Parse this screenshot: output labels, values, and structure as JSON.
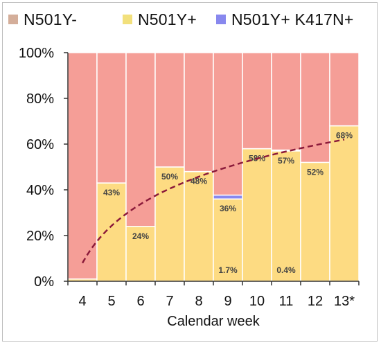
{
  "chart_data": {
    "type": "bar",
    "stacked": true,
    "title": "",
    "xlabel": "Calendar week",
    "ylabel": "",
    "ylim": [
      0,
      100
    ],
    "yticks": [
      "0%",
      "20%",
      "40%",
      "60%",
      "80%",
      "100%"
    ],
    "categories": [
      "4",
      "5",
      "6",
      "7",
      "8",
      "9",
      "10",
      "11",
      "12",
      "13*"
    ],
    "legend_position": "top",
    "series": [
      {
        "name": "N501Y-",
        "color": "#f59e97",
        "values": [
          99,
          57,
          76,
          50,
          52,
          62.3,
          42,
          42.6,
          48,
          32
        ]
      },
      {
        "name": "N501Y+",
        "color": "#fddb82",
        "values": [
          1,
          43,
          24,
          50,
          48,
          36,
          58,
          57,
          52,
          68
        ]
      },
      {
        "name": "N501Y+ K417N+",
        "color": "#8888ee",
        "values": [
          0,
          0,
          0,
          0,
          0,
          1.7,
          0,
          0.4,
          0,
          0
        ]
      }
    ],
    "legend_colors": [
      "#d4ae9a",
      "#f2e07c",
      "#8888ee"
    ],
    "data_labels": [
      {
        "category": "5",
        "series": "N501Y+",
        "text": "43%"
      },
      {
        "category": "6",
        "series": "N501Y+",
        "text": "24%"
      },
      {
        "category": "7",
        "series": "N501Y+",
        "text": "50%"
      },
      {
        "category": "8",
        "series": "N501Y+",
        "text": "48%"
      },
      {
        "category": "9",
        "series": "N501Y+",
        "text": "36%"
      },
      {
        "category": "10",
        "series": "N501Y+",
        "text": "58%"
      },
      {
        "category": "11",
        "series": "N501Y+",
        "text": "57%"
      },
      {
        "category": "12",
        "series": "N501Y+",
        "text": "52%"
      },
      {
        "category": "13*",
        "series": "N501Y+",
        "text": "68%"
      },
      {
        "category": "9",
        "series": "N501Y+ K417N+",
        "text": "1.7%"
      },
      {
        "category": "11",
        "series": "N501Y+ K417N+",
        "text": "0.4%"
      }
    ],
    "trendline": {
      "style": "dashed",
      "color": "#8b1a3a",
      "shape": "logarithmic",
      "x": [
        "4",
        "13*"
      ],
      "y": [
        8,
        62
      ]
    }
  }
}
